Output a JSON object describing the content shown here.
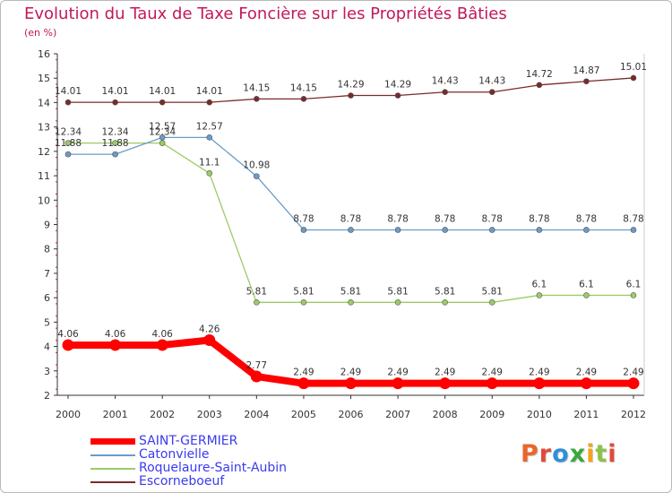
{
  "header": {
    "title": "Evolution du Taux de Taxe Foncière sur les Propriétés Bâties",
    "subtitle": "(en %)"
  },
  "logo": {
    "text": "Proxiti",
    "colors": [
      "#e8672a",
      "#e24a3b",
      "#2f8fd8",
      "#3aa83a",
      "#f2a51c",
      "#8bc34a",
      "#e24a3b"
    ]
  },
  "chart_data": {
    "type": "line",
    "title": "Evolution du Taux de Taxe Foncière sur les Propriétés Bâties",
    "ylabel": "(en %)",
    "xlabel": "",
    "ylim": [
      2,
      16
    ],
    "yticks": [
      2,
      3,
      4,
      5,
      6,
      7,
      8,
      9,
      10,
      11,
      12,
      13,
      14,
      15,
      16
    ],
    "grid": false,
    "legend_position": "bottom-left",
    "categories": [
      "2000",
      "2001",
      "2002",
      "2003",
      "2004",
      "2005",
      "2006",
      "2007",
      "2008",
      "2009",
      "2010",
      "2011",
      "2012"
    ],
    "series": [
      {
        "name": "Escorneboeuf",
        "color": "#7a2a2a",
        "values": [
          14.01,
          14.01,
          14.01,
          14.01,
          14.15,
          14.15,
          14.29,
          14.29,
          14.43,
          14.43,
          14.72,
          14.87,
          15.01
        ],
        "labels": [
          "14.01",
          "14.01",
          "14.01",
          "14.01",
          "14.15",
          "14.15",
          "14.29",
          "14.29",
          "14.43",
          "14.43",
          "14.72",
          "14.87",
          "15.01"
        ]
      },
      {
        "name": "Roquelaure-Saint-Aubin",
        "color": "#9ccc65",
        "values": [
          12.34,
          12.34,
          12.34,
          11.1,
          5.81,
          5.81,
          5.81,
          5.81,
          5.81,
          5.81,
          6.1,
          6.1,
          6.1
        ],
        "labels": [
          "12.34",
          "12.34",
          "12.34",
          "11.1",
          "5.81",
          "5.81",
          "5.81",
          "5.81",
          "5.81",
          "5.81",
          "6.1",
          "6.1",
          "6.1"
        ]
      },
      {
        "name": "Catonvielle",
        "color": "#6a9cc9",
        "values": [
          11.88,
          11.88,
          12.57,
          12.57,
          10.98,
          8.78,
          8.78,
          8.78,
          8.78,
          8.78,
          8.78,
          8.78,
          8.78
        ],
        "labels": [
          "11.88",
          "11.88",
          "12.57",
          "12.57",
          "10.98",
          "8.78",
          "8.78",
          "8.78",
          "8.78",
          "8.78",
          "8.78",
          "8.78",
          "8.78"
        ]
      },
      {
        "name": "SAINT-GERMIER",
        "color": "#ff0000",
        "values": [
          4.06,
          4.06,
          4.06,
          4.26,
          2.77,
          2.49,
          2.49,
          2.49,
          2.49,
          2.49,
          2.49,
          2.49,
          2.49
        ],
        "labels": [
          "4.06",
          "4.06",
          "4.06",
          "4.26",
          "2.77",
          "2.49",
          "2.49",
          "2.49",
          "2.49",
          "2.49",
          "2.49",
          "2.49",
          "2.49"
        ]
      }
    ],
    "legend": [
      "SAINT-GERMIER",
      "Catonvielle",
      "Roquelaure-Saint-Aubin",
      "Escorneboeuf"
    ]
  }
}
